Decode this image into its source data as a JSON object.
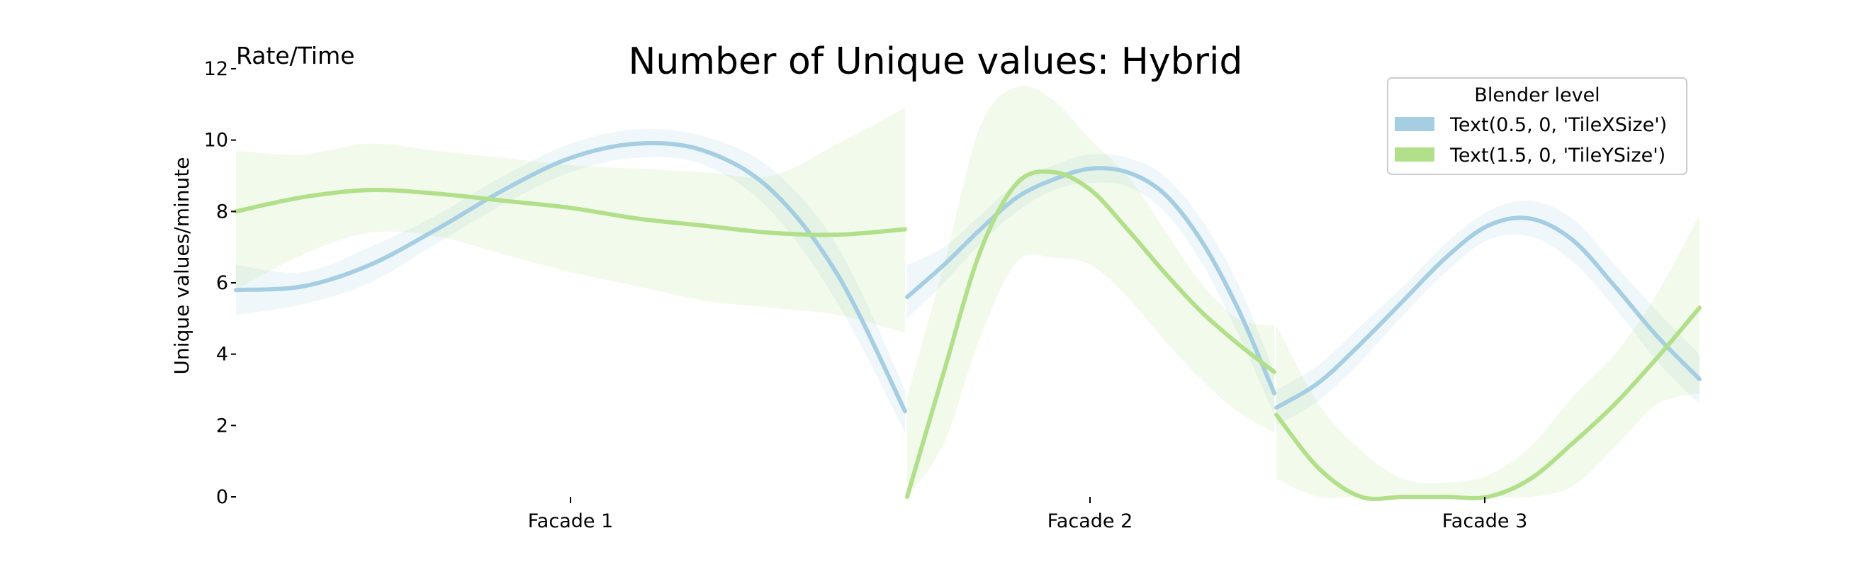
{
  "chart_data": {
    "type": "line",
    "title": "Number of Unique values: Hybrid",
    "corner_label": "Rate/Time",
    "ylabel": "Unique values/minute",
    "xlabel": "",
    "ylim": [
      0,
      12
    ],
    "yticks": [
      0,
      2,
      4,
      6,
      8,
      10,
      12
    ],
    "grid": false,
    "facets": [
      "Facade 1",
      "Facade 2",
      "Facade 3"
    ],
    "legend": {
      "title": "Blender level",
      "placement": "top-right",
      "entries": [
        "Text(0.5, 0, 'TileXSize')",
        "Text(1.5, 0, 'TileYSize')"
      ]
    },
    "series": [
      {
        "name": "Text(0.5, 0, 'TileXSize')",
        "color": "#a6cee3",
        "segments": [
          {
            "facet": "Facade 1",
            "x": [
              0,
              0.1,
              0.2,
              0.3,
              0.4,
              0.5,
              0.6,
              0.7,
              0.8,
              0.9,
              1.0
            ],
            "y": [
              5.8,
              5.9,
              6.5,
              7.5,
              8.6,
              9.5,
              9.9,
              9.7,
              8.6,
              6.2,
              2.4
            ],
            "lower": [
              5.1,
              5.4,
              6.0,
              7.1,
              8.2,
              9.1,
              9.5,
              9.3,
              8.0,
              5.4,
              1.8
            ],
            "upper": [
              6.5,
              6.3,
              7.0,
              7.9,
              9.0,
              9.9,
              10.3,
              10.1,
              9.2,
              7.0,
              3.0
            ]
          },
          {
            "facet": "Facade 2",
            "x": [
              0,
              0.1,
              0.2,
              0.3,
              0.4,
              0.5,
              0.6,
              0.7,
              0.8,
              0.9,
              1.0
            ],
            "y": [
              5.6,
              6.5,
              7.5,
              8.4,
              8.9,
              9.2,
              9.1,
              8.5,
              7.2,
              5.3,
              2.9
            ],
            "lower": [
              5.0,
              6.0,
              7.1,
              8.0,
              8.6,
              8.8,
              8.7,
              8.0,
              6.6,
              4.6,
              2.3
            ],
            "upper": [
              6.5,
              7.0,
              7.9,
              8.8,
              9.3,
              9.6,
              9.5,
              9.0,
              7.8,
              6.0,
              3.5
            ]
          },
          {
            "facet": "Facade 3",
            "x": [
              0,
              0.1,
              0.2,
              0.3,
              0.4,
              0.5,
              0.6,
              0.7,
              0.8,
              0.9,
              1.0
            ],
            "y": [
              2.5,
              3.2,
              4.3,
              5.5,
              6.7,
              7.6,
              7.8,
              7.2,
              5.9,
              4.5,
              3.3
            ],
            "lower": [
              2.0,
              2.7,
              3.8,
              5.1,
              6.3,
              7.2,
              7.3,
              6.6,
              5.3,
              3.8,
              2.6
            ],
            "upper": [
              3.0,
              3.7,
              4.8,
              5.9,
              7.1,
              8.0,
              8.3,
              7.8,
              6.5,
              5.2,
              4.0
            ]
          }
        ]
      },
      {
        "name": "Text(1.5, 0, 'TileYSize')",
        "color": "#b2df8a",
        "segments": [
          {
            "facet": "Facade 1",
            "x": [
              0,
              0.1,
              0.2,
              0.3,
              0.4,
              0.5,
              0.6,
              0.7,
              0.8,
              0.9,
              1.0
            ],
            "y": [
              8.0,
              8.4,
              8.6,
              8.5,
              8.3,
              8.1,
              7.8,
              7.6,
              7.4,
              7.35,
              7.5
            ],
            "lower": [
              5.8,
              6.8,
              7.4,
              7.3,
              6.8,
              6.3,
              5.9,
              5.5,
              5.3,
              5.1,
              4.6
            ],
            "upper": [
              9.7,
              9.6,
              9.9,
              9.7,
              9.5,
              9.3,
              9.2,
              9.1,
              9.0,
              9.9,
              10.9
            ]
          },
          {
            "facet": "Facade 2",
            "x": [
              0,
              0.1,
              0.2,
              0.3,
              0.4,
              0.5,
              0.6,
              0.7,
              0.8,
              0.9,
              1.0
            ],
            "y": [
              0.0,
              3.5,
              6.9,
              8.8,
              9.1,
              8.6,
              7.5,
              6.3,
              5.2,
              4.3,
              3.5
            ],
            "lower": [
              0.0,
              1.5,
              4.5,
              6.6,
              6.7,
              6.5,
              5.6,
              4.4,
              3.3,
              2.4,
              1.8
            ],
            "upper": [
              2.8,
              6.5,
              10.4,
              11.5,
              11.1,
              10.0,
              9.0,
              7.5,
              6.0,
              5.0,
              4.8
            ]
          },
          {
            "facet": "Facade 3",
            "x": [
              0,
              0.1,
              0.2,
              0.3,
              0.4,
              0.5,
              0.6,
              0.7,
              0.8,
              0.9,
              1.0
            ],
            "y": [
              2.3,
              0.8,
              0.0,
              0.0,
              0.0,
              0.0,
              0.5,
              1.5,
              2.6,
              3.9,
              5.3
            ],
            "lower": [
              0.5,
              0.0,
              0.0,
              0.0,
              0.0,
              0.0,
              0.0,
              0.3,
              1.4,
              2.6,
              2.9
            ],
            "upper": [
              4.8,
              2.6,
              1.3,
              0.5,
              0.4,
              0.6,
              1.4,
              2.8,
              4.0,
              5.7,
              7.9
            ]
          }
        ]
      }
    ]
  }
}
